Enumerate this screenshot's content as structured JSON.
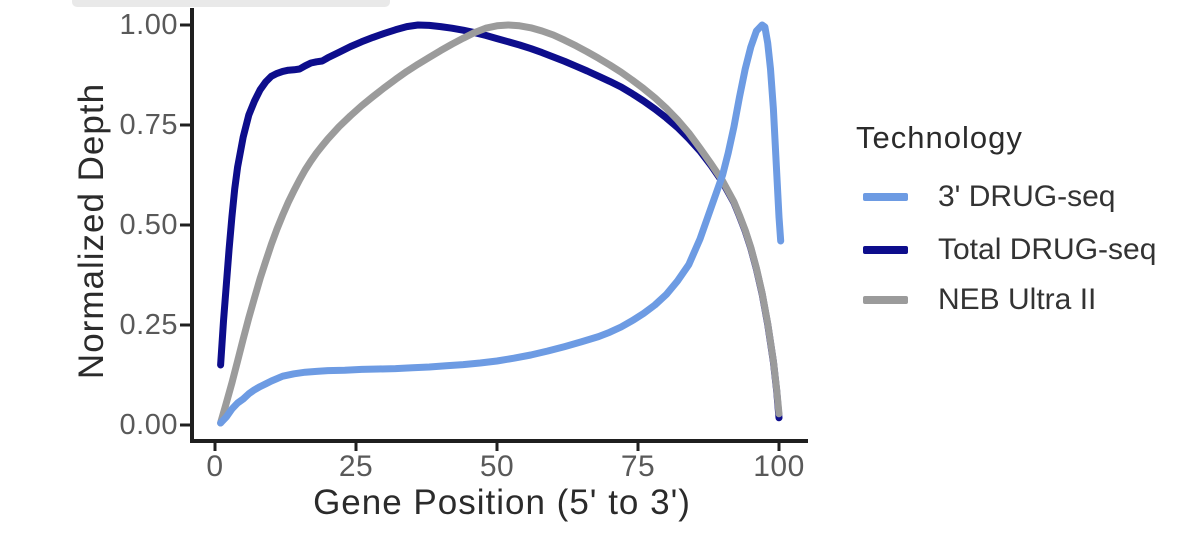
{
  "chart_data": {
    "type": "line",
    "xlabel": "Gene Position (5' to 3')",
    "ylabel": "Normalized Depth",
    "xlim": [
      0,
      100
    ],
    "ylim": [
      0,
      1
    ],
    "grid": false,
    "x_tick_values": [
      0,
      25,
      50,
      75,
      100
    ],
    "x_tick_labels": [
      "0",
      "25",
      "50",
      "75",
      "100"
    ],
    "y_tick_values": [
      1.0,
      0.75,
      0.5,
      0.25,
      0.0
    ],
    "y_tick_labels": [
      "1.00",
      "0.75",
      "0.50",
      "0.25",
      "0.00"
    ],
    "legend": {
      "title": "Technology",
      "position": "right"
    },
    "style": {
      "axis_color": "#1f1f1f",
      "tick_label_color": "#595959",
      "axis_title_color": "#2b2b2b",
      "legend_text_color": "#333333",
      "background": "#ffffff"
    },
    "series": [
      {
        "name": "3' DRUG-seq",
        "color": "#6D9BE3",
        "points": [
          [
            1,
            0.005
          ],
          [
            2,
            0.02
          ],
          [
            3,
            0.04
          ],
          [
            4,
            0.055
          ],
          [
            5,
            0.065
          ],
          [
            6,
            0.078
          ],
          [
            7,
            0.088
          ],
          [
            8,
            0.096
          ],
          [
            9,
            0.103
          ],
          [
            10,
            0.11
          ],
          [
            12,
            0.122
          ],
          [
            14,
            0.128
          ],
          [
            16,
            0.132
          ],
          [
            18,
            0.134
          ],
          [
            20,
            0.136
          ],
          [
            23,
            0.137
          ],
          [
            26,
            0.139
          ],
          [
            29,
            0.14
          ],
          [
            32,
            0.141
          ],
          [
            35,
            0.143
          ],
          [
            38,
            0.145
          ],
          [
            41,
            0.148
          ],
          [
            44,
            0.151
          ],
          [
            47,
            0.155
          ],
          [
            50,
            0.16
          ],
          [
            53,
            0.167
          ],
          [
            56,
            0.175
          ],
          [
            59,
            0.185
          ],
          [
            62,
            0.196
          ],
          [
            65,
            0.208
          ],
          [
            68,
            0.221
          ],
          [
            70,
            0.232
          ],
          [
            72,
            0.245
          ],
          [
            74,
            0.261
          ],
          [
            76,
            0.279
          ],
          [
            78,
            0.3
          ],
          [
            80,
            0.326
          ],
          [
            82,
            0.36
          ],
          [
            84,
            0.401
          ],
          [
            86,
            0.465
          ],
          [
            88,
            0.545
          ],
          [
            90,
            0.625
          ],
          [
            91,
            0.68
          ],
          [
            92,
            0.745
          ],
          [
            93,
            0.82
          ],
          [
            94,
            0.89
          ],
          [
            95,
            0.945
          ],
          [
            96,
            0.985
          ],
          [
            97,
            1.0
          ],
          [
            97.5,
            0.995
          ],
          [
            98,
            0.955
          ],
          [
            98.5,
            0.89
          ],
          [
            99,
            0.79
          ],
          [
            99.5,
            0.655
          ],
          [
            100,
            0.52
          ],
          [
            100.3,
            0.46
          ]
        ]
      },
      {
        "name": "Total DRUG-seq",
        "color": "#0D0D8C",
        "points": [
          [
            1,
            0.15
          ],
          [
            1.5,
            0.26
          ],
          [
            2,
            0.35
          ],
          [
            2.5,
            0.44
          ],
          [
            3,
            0.52
          ],
          [
            3.5,
            0.59
          ],
          [
            4,
            0.645
          ],
          [
            5,
            0.72
          ],
          [
            6,
            0.775
          ],
          [
            7,
            0.81
          ],
          [
            8,
            0.838
          ],
          [
            9,
            0.858
          ],
          [
            10,
            0.872
          ],
          [
            11,
            0.879
          ],
          [
            12,
            0.884
          ],
          [
            13,
            0.887
          ],
          [
            14,
            0.888
          ],
          [
            15,
            0.89
          ],
          [
            16,
            0.898
          ],
          [
            17,
            0.905
          ],
          [
            18,
            0.908
          ],
          [
            19,
            0.91
          ],
          [
            20,
            0.918
          ],
          [
            22,
            0.932
          ],
          [
            24,
            0.946
          ],
          [
            26,
            0.958
          ],
          [
            28,
            0.969
          ],
          [
            30,
            0.979
          ],
          [
            32,
            0.988
          ],
          [
            34,
            0.996
          ],
          [
            36,
            1.0
          ],
          [
            38,
            0.999
          ],
          [
            40,
            0.996
          ],
          [
            42,
            0.992
          ],
          [
            44,
            0.987
          ],
          [
            46,
            0.981
          ],
          [
            48,
            0.974
          ],
          [
            50,
            0.966
          ],
          [
            52,
            0.958
          ],
          [
            54,
            0.95
          ],
          [
            56,
            0.941
          ],
          [
            58,
            0.931
          ],
          [
            60,
            0.92
          ],
          [
            62,
            0.909
          ],
          [
            64,
            0.897
          ],
          [
            66,
            0.885
          ],
          [
            68,
            0.872
          ],
          [
            70,
            0.859
          ],
          [
            72,
            0.845
          ],
          [
            74,
            0.828
          ],
          [
            76,
            0.81
          ],
          [
            78,
            0.79
          ],
          [
            80,
            0.768
          ],
          [
            82,
            0.744
          ],
          [
            84,
            0.716
          ],
          [
            86,
            0.685
          ],
          [
            88,
            0.648
          ],
          [
            90,
            0.607
          ],
          [
            92,
            0.556
          ],
          [
            93,
            0.522
          ],
          [
            94,
            0.485
          ],
          [
            95,
            0.442
          ],
          [
            96,
            0.39
          ],
          [
            97,
            0.328
          ],
          [
            98,
            0.252
          ],
          [
            99,
            0.158
          ],
          [
            99.6,
            0.085
          ],
          [
            100,
            0.018
          ]
        ]
      },
      {
        "name": "NEB Ultra II",
        "color": "#9B9B9B",
        "points": [
          [
            1,
            0.005
          ],
          [
            2,
            0.055
          ],
          [
            3,
            0.105
          ],
          [
            4,
            0.16
          ],
          [
            5,
            0.215
          ],
          [
            6,
            0.268
          ],
          [
            7,
            0.318
          ],
          [
            8,
            0.366
          ],
          [
            9,
            0.41
          ],
          [
            10,
            0.452
          ],
          [
            11,
            0.49
          ],
          [
            12,
            0.525
          ],
          [
            13,
            0.557
          ],
          [
            14,
            0.586
          ],
          [
            15,
            0.613
          ],
          [
            16,
            0.638
          ],
          [
            17,
            0.66
          ],
          [
            18,
            0.68
          ],
          [
            19,
            0.698
          ],
          [
            20,
            0.715
          ],
          [
            22,
            0.746
          ],
          [
            24,
            0.773
          ],
          [
            26,
            0.798
          ],
          [
            28,
            0.821
          ],
          [
            30,
            0.843
          ],
          [
            32,
            0.864
          ],
          [
            34,
            0.884
          ],
          [
            36,
            0.902
          ],
          [
            38,
            0.919
          ],
          [
            40,
            0.936
          ],
          [
            42,
            0.952
          ],
          [
            44,
            0.967
          ],
          [
            46,
            0.981
          ],
          [
            48,
            0.992
          ],
          [
            50,
            0.998
          ],
          [
            52,
            1.0
          ],
          [
            54,
            0.998
          ],
          [
            56,
            0.993
          ],
          [
            58,
            0.985
          ],
          [
            60,
            0.975
          ],
          [
            62,
            0.962
          ],
          [
            64,
            0.948
          ],
          [
            66,
            0.933
          ],
          [
            68,
            0.917
          ],
          [
            70,
            0.9
          ],
          [
            72,
            0.882
          ],
          [
            74,
            0.862
          ],
          [
            76,
            0.841
          ],
          [
            78,
            0.818
          ],
          [
            80,
            0.792
          ],
          [
            82,
            0.763
          ],
          [
            84,
            0.73
          ],
          [
            86,
            0.692
          ],
          [
            88,
            0.652
          ],
          [
            90,
            0.61
          ],
          [
            92,
            0.558
          ],
          [
            93,
            0.524
          ],
          [
            94,
            0.487
          ],
          [
            95,
            0.444
          ],
          [
            96,
            0.392
          ],
          [
            97,
            0.33
          ],
          [
            98,
            0.254
          ],
          [
            99,
            0.16
          ],
          [
            99.6,
            0.088
          ],
          [
            100,
            0.028
          ]
        ]
      }
    ]
  }
}
